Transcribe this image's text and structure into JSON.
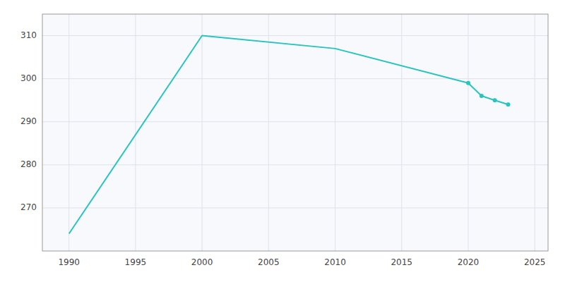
{
  "chart_data": {
    "type": "line",
    "x": [
      1990,
      2000,
      2010,
      2020,
      2021,
      2022,
      2023
    ],
    "series": [
      {
        "values": [
          264,
          310,
          307,
          299,
          296,
          295,
          294
        ],
        "color": "#29c4c0",
        "line_style": "solid"
      },
      {
        "type": "scatter",
        "marker": "circle",
        "values": [
          null,
          null,
          null,
          299,
          296,
          295,
          294
        ],
        "color": "#29c4c0"
      }
    ],
    "xlim": [
      1988,
      2026
    ],
    "ylim": [
      260,
      315
    ],
    "xticks": [
      1990,
      1995,
      2000,
      2005,
      2010,
      2015,
      2020,
      2025
    ],
    "yticks": [
      270,
      280,
      290,
      300,
      310
    ],
    "grid": true
  }
}
